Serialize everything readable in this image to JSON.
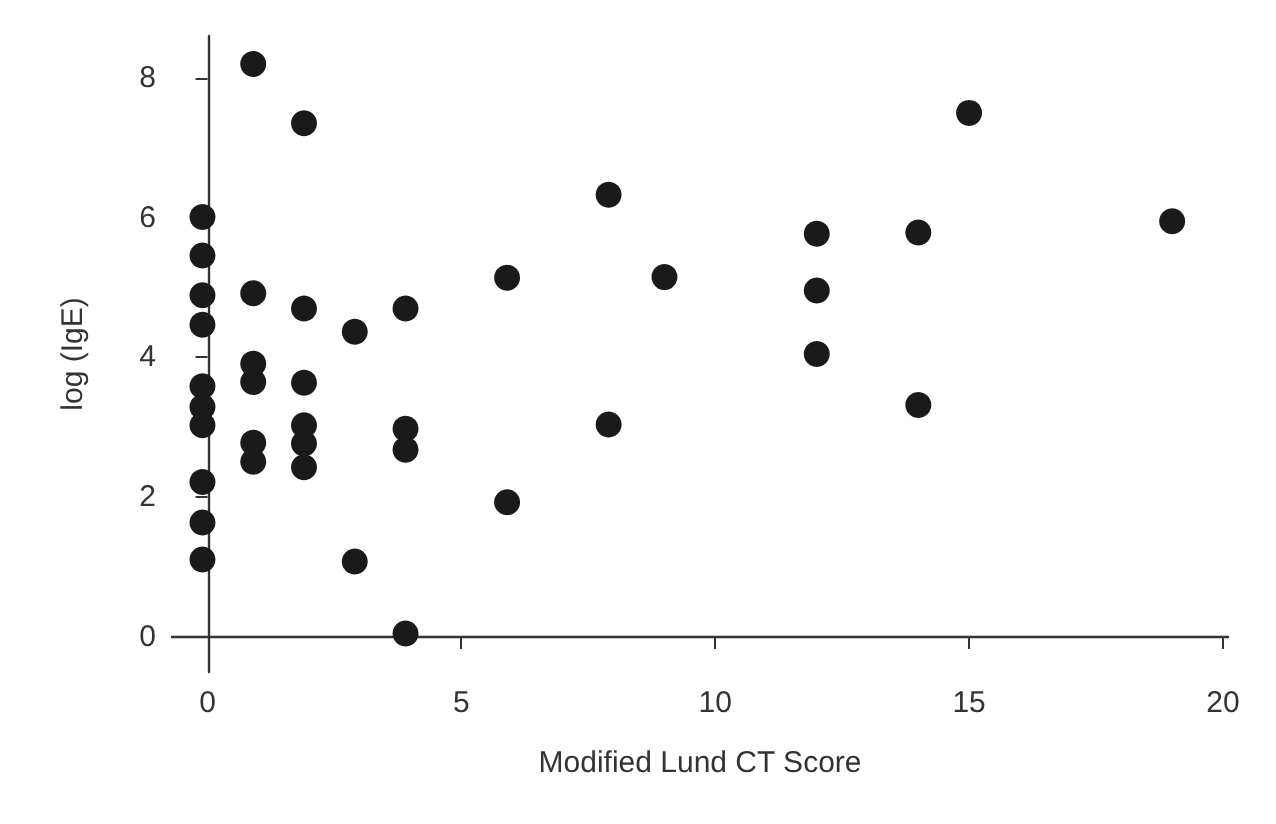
{
  "chart_data": {
    "type": "scatter",
    "xlabel": "Modified Lund CT Score",
    "ylabel": "log (IgE)",
    "xlim": [
      -0.7,
      20.1
    ],
    "ylim": [
      -0.5,
      8.6
    ],
    "xticks": [
      0,
      5,
      10,
      15,
      20
    ],
    "yticks": [
      0,
      2,
      4,
      6,
      8
    ],
    "grid": false,
    "marker": "circle",
    "series": [
      {
        "color": "#1a1a1a",
        "x": [
          -0.1,
          -0.1,
          -0.1,
          -0.1,
          -0.1,
          -0.1,
          -0.1,
          -0.1,
          -0.1,
          -0.1,
          0.9,
          0.9,
          0.9,
          0.9,
          0.9,
          0.9,
          1.9,
          1.9,
          1.9,
          1.9,
          1.9,
          1.9,
          2.9,
          2.9,
          3.9,
          3.9,
          3.9,
          3.9,
          5.9,
          5.9,
          7.9,
          7.9,
          9,
          12,
          12,
          12,
          14,
          14,
          15,
          19
        ],
        "values": [
          6.01,
          5.46,
          4.89,
          4.47,
          3.59,
          3.29,
          3.03,
          2.22,
          1.64,
          1.11,
          8.2,
          4.92,
          3.91,
          3.65,
          2.78,
          2.51,
          7.35,
          4.7,
          3.64,
          3.03,
          2.77,
          2.43,
          4.37,
          1.08,
          4.7,
          2.98,
          2.68,
          0.05,
          5.14,
          1.93,
          6.33,
          3.04,
          5.15,
          5.77,
          4.96,
          4.05,
          5.79,
          3.32,
          7.5,
          5.95
        ]
      }
    ]
  }
}
